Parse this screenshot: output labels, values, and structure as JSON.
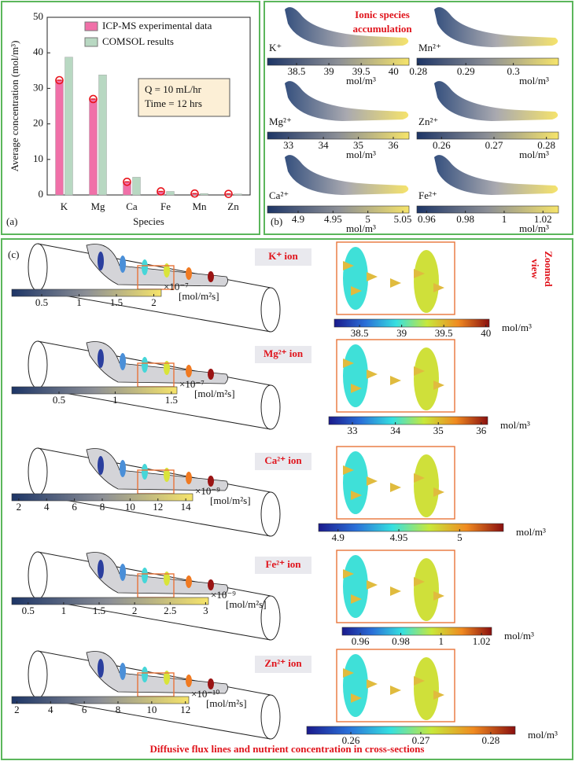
{
  "chart_data": {
    "type": "bar",
    "panel_label": "(a)",
    "x_label": "Species",
    "y_label": "Average concentration (mol/m³)",
    "categories": [
      "K",
      "Mg",
      "Ca",
      "Fe",
      "Mn",
      "Zn"
    ],
    "series": [
      {
        "name": "ICP-MS experimental data",
        "color": "#f070a8",
        "marker_color": "#e8141c",
        "values": [
          32.3,
          27,
          3.7,
          1,
          0.4,
          0.3
        ]
      },
      {
        "name": "COMSOL results",
        "color": "#b8d8c2",
        "values": [
          38.8,
          33.8,
          5,
          1,
          0.4,
          0.3
        ]
      }
    ],
    "ylim": [
      0,
      50
    ],
    "yticks": [
      0,
      10,
      20,
      30,
      40,
      50
    ],
    "annotation": [
      "Q = 10 mL/hr",
      "Time = 12 hrs"
    ]
  },
  "panel_b": {
    "label": "(b)",
    "title": [
      "Ionic species",
      "accumulation"
    ],
    "items": [
      {
        "ion": "K⁺",
        "unit": "mol/m³",
        "lim": [
          38.05,
          40.24
        ],
        "ticks": [
          38.5,
          39,
          39.5,
          40
        ]
      },
      {
        "ion": "Mn²⁺",
        "unit": "mol/m³",
        "lim": [
          0.2797,
          0.3095
        ],
        "ticks": [
          0.28,
          0.29,
          0.3
        ]
      },
      {
        "ion": "Mg²⁺",
        "unit": "mol/m³",
        "lim": [
          32.4,
          36.45
        ],
        "ticks": [
          33,
          34,
          35,
          36
        ]
      },
      {
        "ion": "Zn²⁺",
        "unit": "mol/m³",
        "lim": [
          0.2553,
          0.2823
        ],
        "ticks": [
          0.26,
          0.27,
          0.28
        ]
      },
      {
        "ion": "Ca²⁺",
        "unit": "mol/m³",
        "lim": [
          4.856,
          5.059
        ],
        "ticks": [
          4.9,
          4.95,
          5,
          5.05
        ]
      },
      {
        "ion": "Fe²⁺",
        "unit": "mol/m³",
        "lim": [
          0.955,
          1.028
        ],
        "ticks": [
          0.96,
          0.98,
          1,
          1.02
        ]
      }
    ]
  },
  "panel_c": {
    "label": "(c)",
    "zoom_title": [
      "Zoomed",
      "view"
    ],
    "caption": "Diffusive flux lines and nutrient concentration in cross-sections",
    "rows": [
      {
        "ion_label": "K⁺ ion",
        "flux": {
          "lim": [
            0.1,
            2.1
          ],
          "ticks": [
            0.5,
            1,
            1.5,
            2
          ],
          "exponent": "×10⁻⁷",
          "unit": "[mol/m²s]"
        },
        "conc": {
          "lim": [
            38.2,
            40.04
          ],
          "ticks": [
            38.5,
            39,
            39.5,
            40
          ],
          "unit": "mol/m³"
        }
      },
      {
        "ion_label": "Mg²⁺ ion",
        "flux": {
          "lim": [
            0.08,
            1.55
          ],
          "ticks": [
            0.5,
            1,
            1.5
          ],
          "exponent": "×10⁻⁷",
          "unit": "[mol/m²s]"
        },
        "conc": {
          "lim": [
            32.45,
            36.15
          ],
          "ticks": [
            33,
            34,
            35,
            36
          ],
          "unit": "mol/m³"
        }
      },
      {
        "ion_label": "Ca²⁺ ion",
        "flux": {
          "lim": [
            1.5,
            14.5
          ],
          "ticks": [
            2,
            4,
            6,
            8,
            10,
            12,
            14
          ],
          "exponent": "×10⁻⁹",
          "unit": "[mol/m²s]"
        },
        "conc": {
          "lim": [
            4.884,
            5.036
          ],
          "ticks": [
            4.9,
            4.95,
            5
          ],
          "unit": "mol/m³"
        }
      },
      {
        "ion_label": "Fe²⁺ ion",
        "flux": {
          "lim": [
            0.27,
            3.04
          ],
          "ticks": [
            0.5,
            1,
            1.5,
            2,
            2.5,
            3
          ],
          "exponent": "×10⁻⁹",
          "unit": "[mol/m²s]"
        },
        "conc": {
          "lim": [
            0.951,
            1.025
          ],
          "ticks": [
            0.96,
            0.98,
            1,
            1.02
          ],
          "unit": "mol/m³"
        }
      },
      {
        "ion_label": "Zn²⁺ ion",
        "flux": {
          "lim": [
            1.7,
            12.2
          ],
          "ticks": [
            2,
            4,
            6,
            8,
            10,
            12
          ],
          "exponent": "×10⁻¹⁰",
          "unit": "[mol/m²s]"
        },
        "conc": {
          "lim": [
            0.2537,
            0.2835
          ],
          "ticks": [
            0.26,
            0.27,
            0.28
          ],
          "unit": "mol/m³"
        }
      }
    ]
  }
}
